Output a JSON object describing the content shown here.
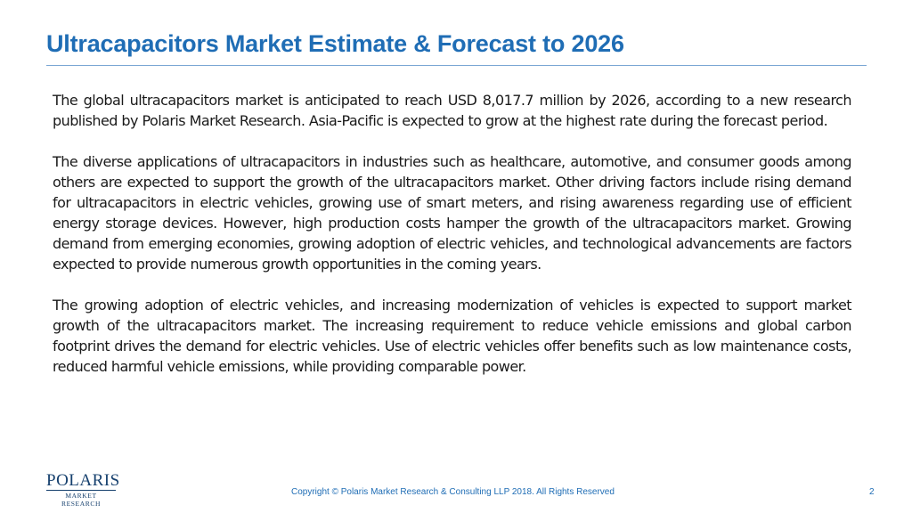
{
  "slide": {
    "title": "Ultracapacitors Market Estimate & Forecast to 2026",
    "paragraphs": [
      "The global ultracapacitors market is anticipated to reach USD 8,017.7 million by 2026, according to a new research published by Polaris Market Research. Asia-Pacific is expected to grow at the highest rate during the forecast period.",
      "The diverse applications of ultracapacitors in industries such as healthcare, automotive, and consumer goods among others are expected to support the growth of the ultracapacitors market. Other driving factors include rising demand for ultracapacitors in electric vehicles, growing use of smart meters, and rising awareness regarding use of efficient energy storage devices. However, high production costs hamper the growth of the ultracapacitors market. Growing demand from emerging economies, growing adoption of electric vehicles, and technological advancements are factors expected to provide numerous growth opportunities in the coming years.",
      "The growing adoption of electric vehicles, and increasing modernization of vehicles is expected to support market growth of the ultracapacitors market. The increasing requirement to reduce vehicle emissions and global carbon footprint drives the demand for electric vehicles. Use of electric vehicles offer benefits such as low maintenance costs, reduced harmful vehicle emissions, while providing comparable power."
    ]
  },
  "footer": {
    "logo_main": "POLARIS",
    "logo_sub": "MARKET RESEARCH",
    "copyright": "Copyright © Polaris Market Research & Consulting LLP 2018. All Rights Reserved",
    "page_number": "2"
  },
  "colors": {
    "title": "#1f6db5",
    "rule": "#7aa7d4",
    "logo": "#16406e",
    "body_text": "#1a1a1a"
  }
}
